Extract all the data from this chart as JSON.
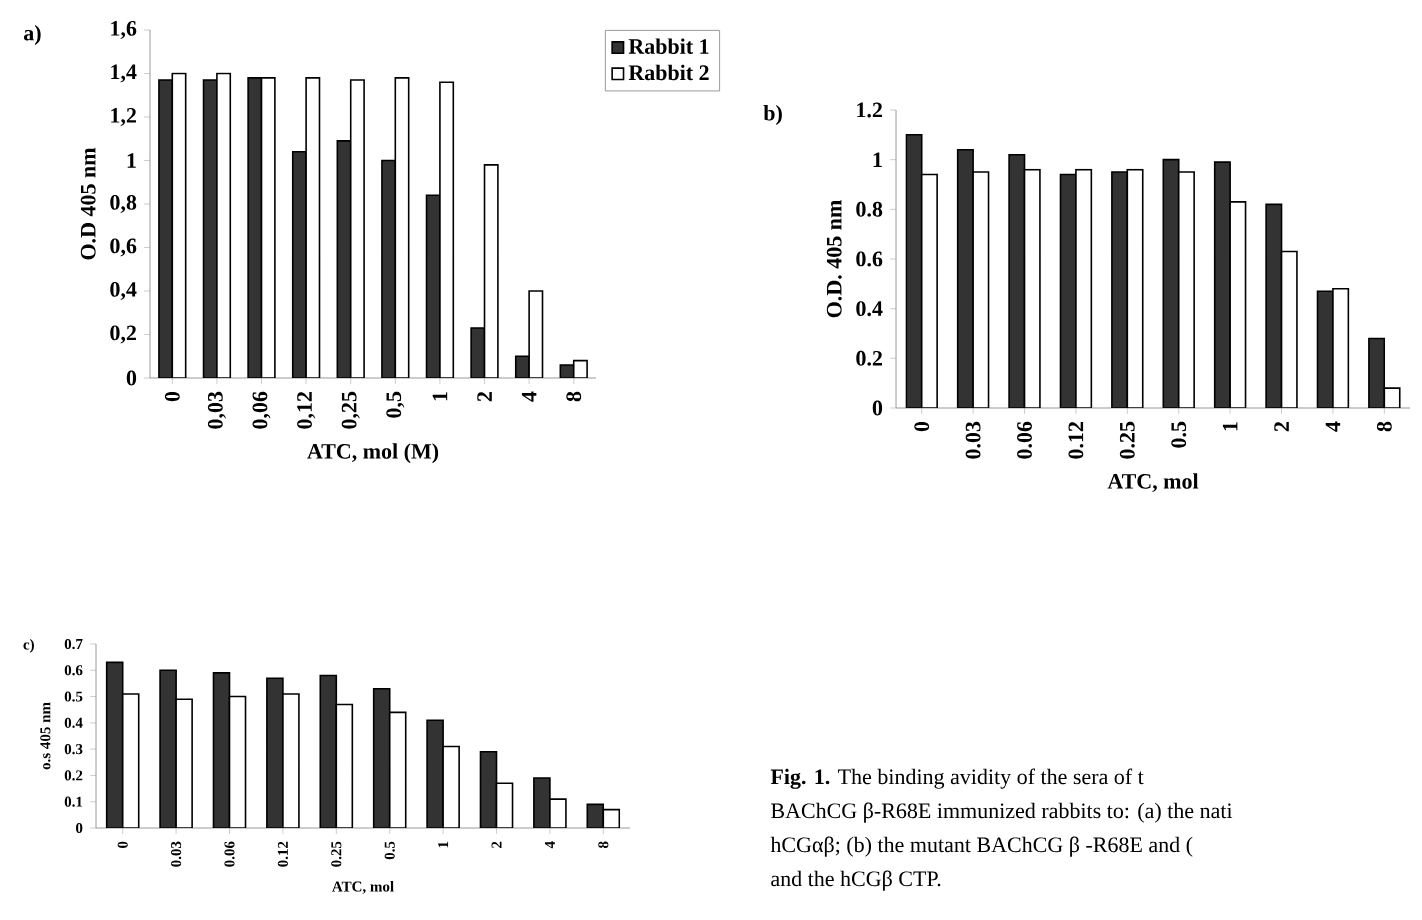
{
  "chart_data": [
    {
      "type": "bar",
      "title": "a)",
      "xlabel": "ATC, mol (M)",
      "ylabel": "O.D 405 nm",
      "categories": [
        "0",
        "0,03",
        "0,06",
        "0,12",
        "0,25",
        "0,5",
        "1",
        "2",
        "4",
        "8"
      ],
      "series": [
        {
          "name": "Rabbit 1",
          "color": "#333333",
          "values": [
            1.37,
            1.37,
            1.38,
            1.04,
            1.09,
            1.0,
            0.84,
            0.23,
            0.1,
            0.06
          ]
        },
        {
          "name": "Rabbit 2",
          "color": "#ffffff",
          "values": [
            1.4,
            1.4,
            1.38,
            1.38,
            1.37,
            1.38,
            1.36,
            0.98,
            0.4,
            0.08
          ]
        }
      ],
      "ylim": [
        0,
        1.6
      ],
      "yticks": [
        0,
        {
          "value": 0.2,
          "label": "0,2"
        },
        {
          "value": 0.4,
          "label": "0,4"
        },
        {
          "value": 0.6,
          "label": "0,6"
        },
        {
          "value": 0.8,
          "label": "0,8"
        },
        1,
        {
          "value": 1.2,
          "label": "1,2"
        },
        {
          "value": 1.4,
          "label": "1,4"
        },
        {
          "value": 1.6,
          "label": "1,6"
        }
      ],
      "legend": "top right"
    },
    {
      "type": "bar",
      "title": "b)",
      "xlabel": "ATC, mol",
      "ylabel": "O.D. 405 nm",
      "categories": [
        "0",
        "0.03",
        "0.06",
        "0.12",
        "0.25",
        "0.5",
        "1",
        "2",
        "4",
        "8"
      ],
      "series": [
        {
          "color": "#333333",
          "values": [
            1.1,
            1.04,
            1.02,
            0.94,
            0.95,
            1.0,
            0.99,
            0.82,
            0.47,
            0.28
          ]
        },
        {
          "color": "#ffffff",
          "values": [
            0.94,
            0.95,
            0.96,
            0.96,
            0.96,
            0.95,
            0.83,
            0.63,
            0.48,
            0.08
          ]
        }
      ],
      "ylim": [
        0,
        1.2
      ],
      "yticks": [
        0,
        0.2,
        0.4,
        0.6,
        0.8,
        1,
        1.2
      ]
    },
    {
      "type": "bar",
      "title": "c)",
      "xlabel": "ATC, mol",
      "ylabel": "o.s 405 nm",
      "categories": [
        "0",
        "0.03",
        "0.06",
        "0.12",
        "0.25",
        "0.5",
        "1",
        "2",
        "4",
        "8"
      ],
      "series": [
        {
          "color": "#333333",
          "values": [
            0.63,
            0.6,
            0.59,
            0.57,
            0.58,
            0.53,
            0.41,
            0.29,
            0.19,
            0.09
          ]
        },
        {
          "color": "#ffffff",
          "values": [
            0.51,
            0.49,
            0.5,
            0.51,
            0.47,
            0.44,
            0.31,
            0.17,
            0.11,
            0.07
          ]
        }
      ],
      "ylim": [
        0,
        0.7
      ],
      "yticks": [
        0,
        0.1,
        0.2,
        0.3,
        0.4,
        0.5,
        0.6,
        0.7
      ]
    },
    {
      "type": "other",
      "annotations": [
        "**Fig. 1.** The binding avidity of the sera of t",
        "BAChCG β-R68E immunized rabbits to: (a) the nati",
        "hCGαβ; (b) the mutant BAChCG β -R68E and (",
        "and the hCGβ CTP."
      ]
    }
  ]
}
